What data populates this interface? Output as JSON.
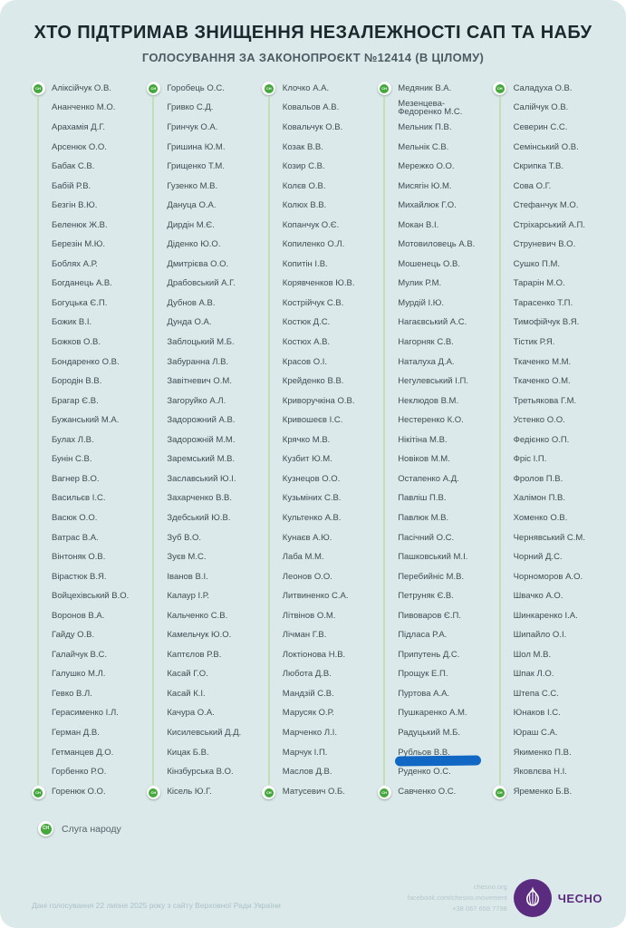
{
  "header": {
    "title": "ХТО ПІДТРИМАВ ЗНИЩЕННЯ НЕЗАЛЕЖНОСТІ САП ТА НАБУ",
    "subtitle": "ГОЛОСУВАННЯ ЗА ЗАКОНОПРОЄКТ №12414 (В ЦІЛОМУ)"
  },
  "columns": [
    [
      "Аліксійчук О.В.",
      "Ананченко М.О.",
      "Арахамія Д.Г.",
      "Арсенюк О.О.",
      "Бабак С.В.",
      "Бабій Р.В.",
      "Безгін В.Ю.",
      "Беленюк Ж.В.",
      "Березін М.Ю.",
      "Боблях А.Р.",
      "Богданець А.В.",
      "Богуцька Є.П.",
      "Божик В.І.",
      "Божков О.В.",
      "Бондаренко О.В.",
      "Бородін В.В.",
      "Брагар Є.В.",
      "Бужанський М.А.",
      "Булах Л.В.",
      "Бунін С.В.",
      "Вагнер В.О.",
      "Васильєв І.С.",
      "Васюк О.О.",
      "Ватрас В.А.",
      "Вінтоняк О.В.",
      "Вірастюк В.Я.",
      "Войцехівський В.О.",
      "Воронов В.А.",
      "Гайду О.В.",
      "Галайчук В.С.",
      "Галушко М.Л.",
      "Гевко В.Л.",
      "Герасименко І.Л.",
      "Герман Д.В.",
      "Гетманцев Д.О.",
      "Горбенко Р.О.",
      "Горенюк О.О."
    ],
    [
      "Горобець О.С.",
      "Гривко С.Д.",
      "Гринчук О.А.",
      "Гришина Ю.М.",
      "Грищенко Т.М.",
      "Гузенко М.В.",
      "Дануца О.А.",
      "Дирдін М.Є.",
      "Діденко Ю.О.",
      "Дмитрієва О.О.",
      "Драбовський А.Г.",
      "Дубнов А.В.",
      "Дунда О.А.",
      "Заблоцький М.Б.",
      "Забуранна Л.В.",
      "Завітневич О.М.",
      "Загоруйко А.Л.",
      "Задорожний А.В.",
      "Задорожній М.М.",
      "Заремський М.В.",
      "Заславський Ю.І.",
      "Захарченко В.В.",
      "Здебський Ю.В.",
      "Зуб В.О.",
      "Зуєв М.С.",
      "Іванов В.І.",
      "Калаур І.Р.",
      "Кальченко С.В.",
      "Камельчук Ю.О.",
      "Каптєлов Р.В.",
      "Касай Г.О.",
      "Касай К.І.",
      "Качура О.А.",
      "Кисилевський Д.Д.",
      "Кицак Б.В.",
      "Кінзбурська В.О.",
      "Кісель Ю.Г."
    ],
    [
      "Клочко А.А.",
      "Ковальов А.В.",
      "Ковальчук О.В.",
      "Козак В.В.",
      "Козир С.В.",
      "Колєв О.В.",
      "Колюх В.В.",
      "Копанчук О.Є.",
      "Копиленко О.Л.",
      "Копитін І.В.",
      "Корявченков Ю.В.",
      "Кострійчук С.В.",
      "Костюк Д.С.",
      "Костюх А.В.",
      "Красов О.І.",
      "Крейденко В.В.",
      "Криворучкіна О.В.",
      "Кривошеєв І.С.",
      "Крячко М.В.",
      "Кузбит Ю.М.",
      "Кузнецов О.О.",
      "Кузьміних С.В.",
      "Культенко А.В.",
      "Кунаєв А.Ю.",
      "Лаба М.М.",
      "Леонов О.О.",
      "Литвиненко С.А.",
      "Літвінов О.М.",
      "Лічман Г.В.",
      "Локтіонова Н.В.",
      "Любота Д.В.",
      "Мандзій С.В.",
      "Марусяк О.Р.",
      "Марченко Л.І.",
      "Марчук І.П.",
      "Маслов Д.В.",
      "Матусевич О.Б."
    ],
    [
      "Медяник В.А.",
      "Мезенцева-\nФедоренко М.С.",
      "Мельник П.В.",
      "Мельнік С.В.",
      "Мережко О.О.",
      "Мисягін Ю.М.",
      "Михайлюк Г.О.",
      "Мокан В.І.",
      "Мотовиловець А.В.",
      "Мошенець О.В.",
      "Мулик Р.М.",
      "Мурдій І.Ю.",
      "Нагаєвський А.С.",
      "Нагорняк С.В.",
      "Наталуха Д.А.",
      "Негулевський І.П.",
      "Неклюдов В.М.",
      "Нестеренко К.О.",
      "Нікітіна М.В.",
      "Новіков М.М.",
      "Остапенко А.Д.",
      "Павліш П.В.",
      "Павлюк М.В.",
      "Пасічний О.С.",
      "Пашковський М.І.",
      "Перебийніс М.В.",
      "Петруняк Є.В.",
      "Пивоваров Є.П.",
      "Підласа Р.А.",
      "Припутень Д.С.",
      "Прощук Е.П.",
      "Пуртова А.А.",
      "Пушкаренко А.М.",
      "Радуцький М.Б.",
      "Рубльов В.В.",
      "Руденко О.С.",
      "Савченко О.С."
    ],
    [
      "Саладуха О.В.",
      "Салійчук О.В.",
      "Северин С.С.",
      "Семінський О.В.",
      "Скрипка Т.В.",
      "Сова О.Г.",
      "Стефанчук М.О.",
      "Стріхарський А.П.",
      "Струневич В.О.",
      "Сушко П.М.",
      "Тарарін М.О.",
      "Тарасенко Т.П.",
      "Тимофійчук В.Я.",
      "Тістик Р.Я.",
      "Ткаченко М.М.",
      "Ткаченко О.М.",
      "Третьякова Г.М.",
      "Устенко О.О.",
      "Федієнко О.П.",
      "Фріс І.П.",
      "Фролов П.В.",
      "Халімон П.В.",
      "Хоменко О.В.",
      "Чернявський С.М.",
      "Чорний Д.С.",
      "Чорноморов А.О.",
      "Швачко А.О.",
      "Шинкаренко І.А.",
      "Шипайло О.І.",
      "Шол М.В.",
      "Шпак Л.О.",
      "Штепа С.С.",
      "Юнаков І.С.",
      "Юраш С.А.",
      "Якименко П.В.",
      "Яковлєва Н.І.",
      "Яременко Б.В."
    ]
  ],
  "highlight": {
    "name": "Рубльов В.В."
  },
  "legend": {
    "party_icon": "sluha-narodu-icon",
    "label": "Слуга народу"
  },
  "footer": {
    "source": "Дані голосування 22 липня 2025 року з сайту Верховної Ради України",
    "contacts": [
      "chesno.org",
      "facebook.com/chesno.movement",
      "+38 067 658 7798"
    ],
    "logo_text": "ЧЕСНО"
  },
  "colors": {
    "card_bg": "#dce9ea",
    "title": "#1b292e",
    "name_text": "#3e4e54",
    "party_green": "#44a83c",
    "line_green": "#c3dfb6",
    "highlight_blue": "#1168c4",
    "chesno_purple": "#5b2b80",
    "muted": "#aac2c7"
  }
}
